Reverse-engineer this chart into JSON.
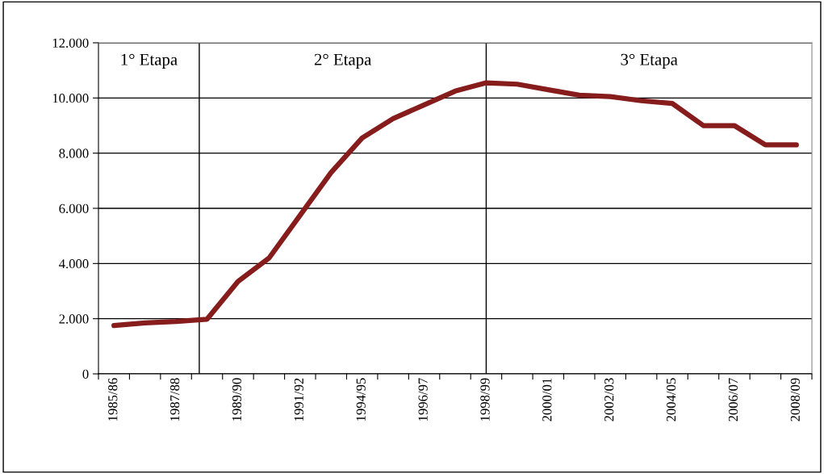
{
  "chart_data": {
    "type": "line",
    "categories": [
      "1985/86",
      null,
      "1987/88",
      null,
      "1989/90",
      null,
      "1991/92",
      null,
      "1994/95",
      null,
      "1996/97",
      null,
      "1998/99",
      null,
      "2000/01",
      null,
      "2002/03",
      null,
      "2004/05",
      null,
      "2006/07",
      null,
      "2008/09"
    ],
    "series": [
      {
        "color": "#861c1c",
        "values": [
          1750,
          1850,
          1900,
          1980,
          3350,
          4200,
          5750,
          7300,
          8550,
          9250,
          9750,
          10250,
          10550,
          10500,
          10300,
          10100,
          10050,
          9900,
          9800,
          9000,
          9000,
          8300,
          8300
        ]
      }
    ],
    "ylim": [
      0,
      12000
    ],
    "yticks": [
      0,
      {
        "value": 2000,
        "label": "2.000"
      },
      {
        "value": 4000,
        "label": "4.000"
      },
      {
        "value": 6000,
        "label": "6.000"
      },
      {
        "value": 8000,
        "label": "8.000"
      },
      {
        "value": 10000,
        "label": "10.000"
      },
      {
        "value": 12000,
        "label": "12.000"
      }
    ],
    "ref_lines": [
      {
        "axis": "x",
        "value": "1998/99",
        "color": "#000000"
      }
    ],
    "annotations": [
      "1° Etapa",
      "2° Etapa",
      "3° Etapa"
    ],
    "grid": "y",
    "legend": false,
    "marker": "none",
    "line_style": "solid"
  }
}
